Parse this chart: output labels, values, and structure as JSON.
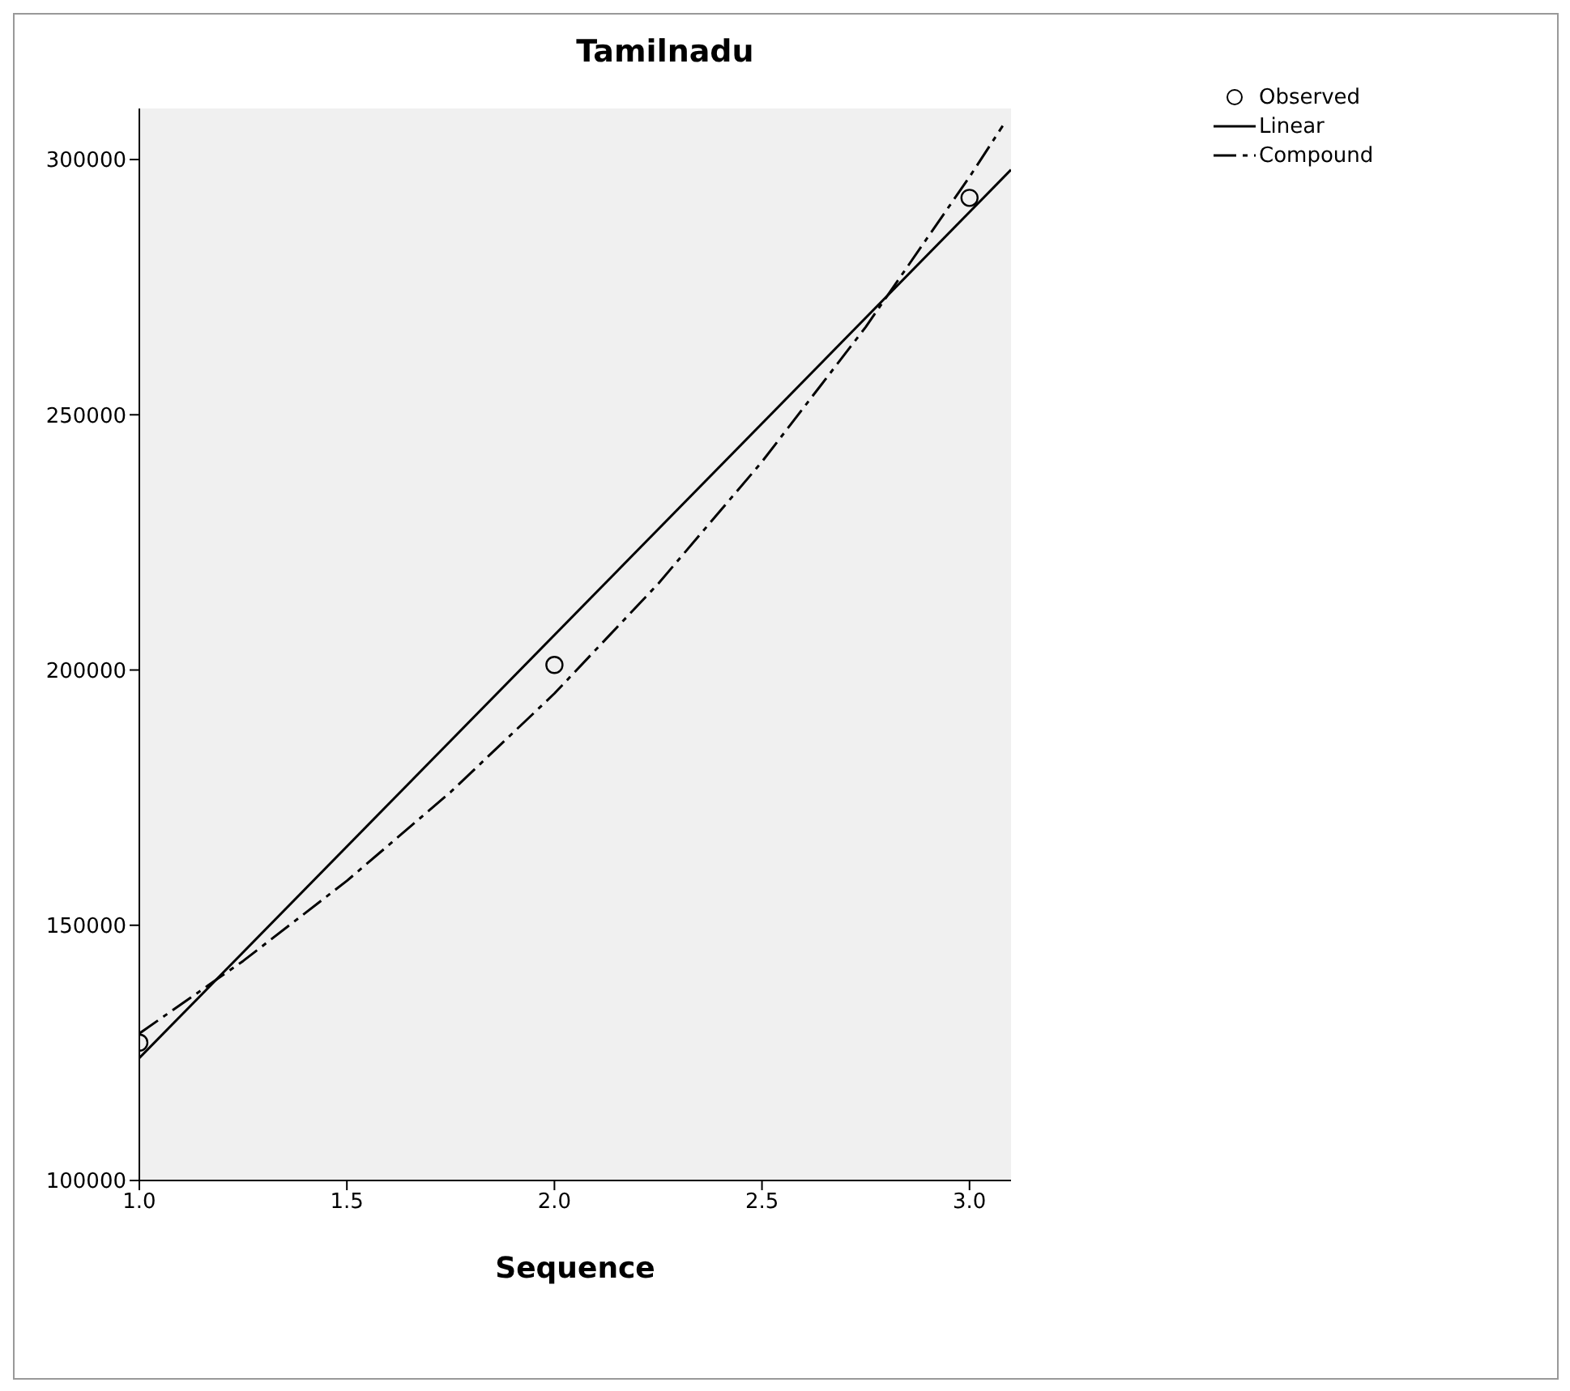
{
  "chart_data": {
    "type": "scatter",
    "title": "Tamilnadu",
    "xlabel": "Sequence",
    "series": [
      {
        "name": "Observed",
        "color": "#000000",
        "marker": "circle",
        "x": [
          1,
          2,
          3
        ],
        "values": [
          127000,
          201000,
          292500
        ]
      },
      {
        "name": "Linear",
        "type": "line",
        "color": "#000000",
        "marker": "none",
        "line_style": "solid",
        "x": [
          1,
          3.1
        ],
        "values": [
          124000,
          298000
        ]
      },
      {
        "name": "Compound",
        "type": "line",
        "color": "#000000",
        "marker": "none",
        "line_style": "dashed",
        "x": [
          1,
          1.25,
          1.5,
          1.75,
          2,
          2.25,
          2.5,
          2.75,
          3,
          3.08
        ],
        "values": [
          128800,
          143000,
          158700,
          176100,
          195400,
          216900,
          240800,
          267200,
          296600,
          306600
        ]
      }
    ],
    "xlim": [
      1,
      3.1
    ],
    "xticks": [
      {
        "value": 1,
        "label": "1.0"
      },
      {
        "value": 1.5,
        "label": "1.5"
      },
      {
        "value": 2,
        "label": "2.0"
      },
      {
        "value": 2.5,
        "label": "2.5"
      },
      {
        "value": 3,
        "label": "3.0"
      }
    ],
    "ylim": [
      100000,
      310000
    ],
    "yticks": [
      100000,
      150000,
      200000,
      250000,
      300000
    ],
    "legend": "top right"
  }
}
